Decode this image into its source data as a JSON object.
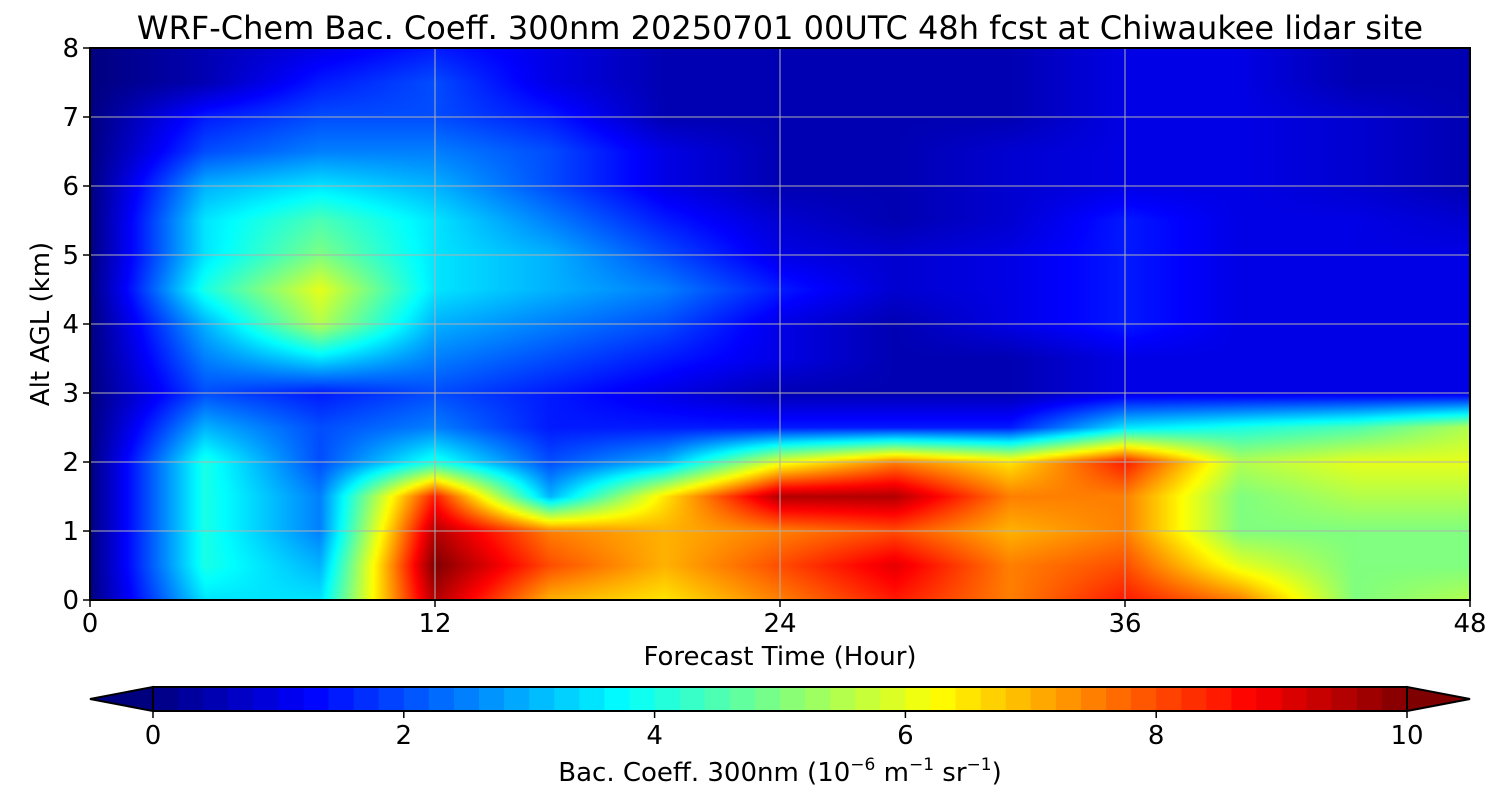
{
  "chart_data": {
    "type": "heatmap",
    "title": "WRF-Chem Bac. Coeff. 300nm  20250701 00UTC 48h fcst at Chiwaukee lidar site",
    "xlabel": "Forecast Time (Hour)",
    "ylabel": "Alt AGL (km)",
    "xlim": [
      0,
      48
    ],
    "ylim": [
      0,
      8
    ],
    "xticks": [
      0,
      12,
      24,
      36,
      48
    ],
    "xtick_labels": [
      "0",
      "12",
      "24",
      "36",
      "48"
    ],
    "yticks": [
      0,
      1,
      2,
      3,
      4,
      5,
      6,
      7,
      8
    ],
    "ytick_labels": [
      "0",
      "1",
      "2",
      "3",
      "4",
      "5",
      "6",
      "7",
      "8"
    ],
    "grid": true,
    "colormap": "jet",
    "colorbar": {
      "orientation": "horizontal",
      "placement": "bottom",
      "range": [
        0,
        10
      ],
      "extend": "both",
      "ticks": [
        0,
        2,
        4,
        6,
        8,
        10
      ],
      "tick_labels": [
        "0",
        "2",
        "4",
        "6",
        "8",
        "10"
      ],
      "label_main": "Bac. Coeff. 300nm  (10",
      "label_exp1": "−6",
      "label_unit1": " m",
      "label_exp2": "−1",
      "label_unit2": " sr",
      "label_exp3": "−1",
      "label_end": ")"
    },
    "hours": [
      0,
      4,
      8,
      12,
      16,
      20,
      24,
      28,
      32,
      36,
      40,
      44,
      48
    ],
    "altitudes_km": [
      0,
      0.5,
      1,
      1.5,
      2,
      2.5,
      3,
      3.5,
      4,
      4.5,
      5,
      5.5,
      6,
      6.5,
      7,
      7.5,
      8
    ],
    "values": [
      [
        0,
        3.5,
        3.5,
        9.5,
        7.0,
        6.5,
        7.5,
        8.5,
        7.5,
        8.5,
        7.5,
        5.0,
        5.5
      ],
      [
        0,
        4.0,
        3.0,
        10.0,
        8.0,
        7.0,
        8.0,
        9.0,
        7.5,
        8.0,
        6.0,
        5.0,
        5.0
      ],
      [
        0,
        4.0,
        2.5,
        9.5,
        7.5,
        7.0,
        7.5,
        8.0,
        7.0,
        7.5,
        5.0,
        5.0,
        5.0
      ],
      [
        0,
        4.0,
        2.5,
        8.5,
        3.0,
        6.5,
        9.5,
        9.5,
        7.5,
        7.5,
        5.0,
        5.5,
        5.5
      ],
      [
        0,
        4.0,
        2.0,
        4.0,
        2.0,
        3.0,
        6.0,
        7.5,
        6.5,
        8.5,
        5.5,
        6.0,
        6.0
      ],
      [
        0,
        3.0,
        2.0,
        2.5,
        1.5,
        1.5,
        1.5,
        1.5,
        1.5,
        3.5,
        4.0,
        4.5,
        5.5
      ],
      [
        0,
        2.0,
        1.5,
        2.0,
        1.5,
        1.0,
        0.5,
        0.5,
        0.5,
        1.0,
        1.0,
        1.0,
        1.0
      ],
      [
        0,
        2.5,
        3.5,
        2.5,
        2.0,
        1.5,
        1.0,
        0.5,
        0.5,
        1.0,
        1.0,
        1.0,
        1.0
      ],
      [
        0,
        3.0,
        5.5,
        3.0,
        2.5,
        2.0,
        1.0,
        0.5,
        1.0,
        1.5,
        1.0,
        1.0,
        1.0
      ],
      [
        0,
        4.0,
        6.0,
        3.5,
        3.0,
        2.5,
        1.5,
        0.8,
        1.0,
        1.5,
        1.0,
        1.0,
        1.0
      ],
      [
        0,
        3.5,
        5.0,
        3.5,
        3.0,
        2.0,
        1.0,
        0.8,
        1.0,
        1.5,
        1.0,
        1.0,
        1.0
      ],
      [
        0,
        3.5,
        4.5,
        3.5,
        2.5,
        1.5,
        0.8,
        0.5,
        0.8,
        1.5,
        1.0,
        1.0,
        0.8
      ],
      [
        0,
        3.0,
        3.5,
        3.0,
        2.0,
        1.0,
        0.5,
        0.5,
        0.8,
        1.0,
        1.0,
        0.8,
        0.5
      ],
      [
        0,
        2.0,
        2.5,
        2.5,
        2.0,
        1.0,
        0.5,
        0.5,
        0.8,
        1.0,
        1.0,
        0.8,
        0.5
      ],
      [
        0,
        1.5,
        2.0,
        2.0,
        1.5,
        0.5,
        0.5,
        0.5,
        0.5,
        1.0,
        1.0,
        0.8,
        0.5
      ],
      [
        0,
        0.5,
        1.5,
        2.0,
        1.0,
        0.5,
        0.5,
        0.5,
        0.5,
        1.0,
        1.0,
        0.5,
        0.5
      ],
      [
        0,
        0.5,
        1.0,
        1.5,
        1.0,
        0.5,
        0.5,
        0.5,
        0.5,
        1.0,
        1.0,
        0.5,
        0.5
      ]
    ]
  }
}
